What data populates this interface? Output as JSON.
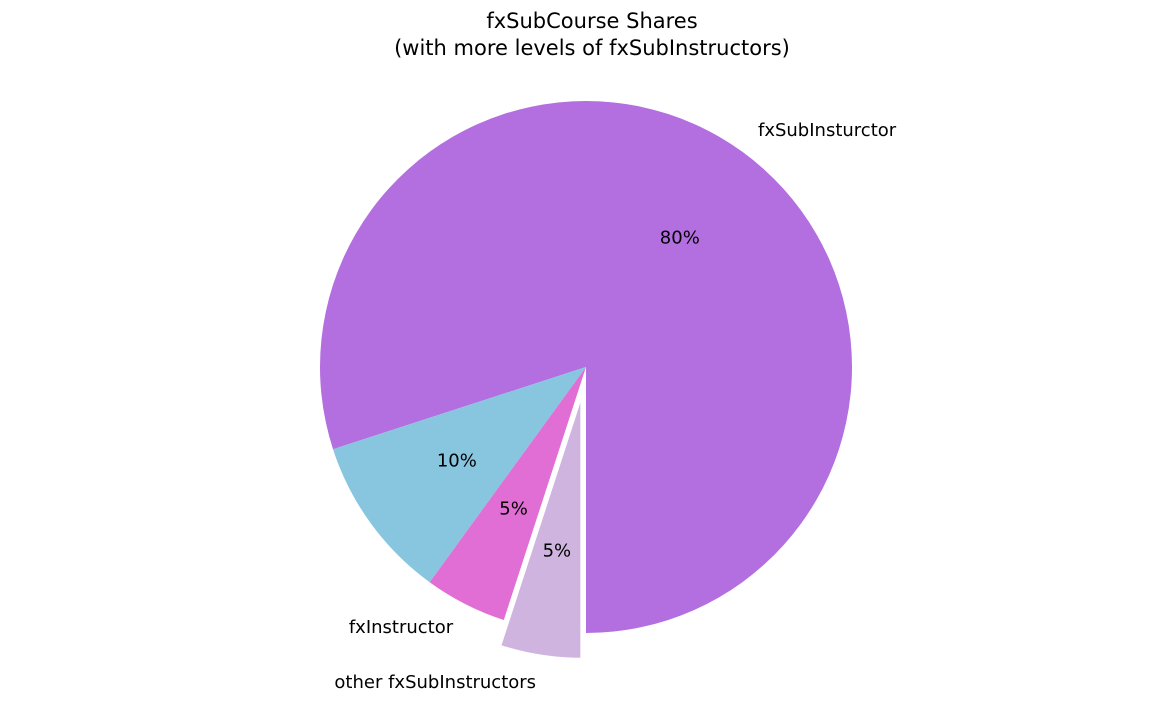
{
  "chart_data": {
    "type": "pie",
    "title_lines": [
      "fxSubCourse Shares",
      "(with more levels of fxSubInstructors)"
    ],
    "slices": [
      {
        "label": "fxSubInsturctor",
        "value": 80,
        "pct_label": "80%",
        "color": "#b36ee0",
        "exploded": false
      },
      {
        "label": "",
        "value": 10,
        "pct_label": "10%",
        "color": "#88c6e0",
        "exploded": false
      },
      {
        "label": "fxInstructor",
        "value": 5,
        "pct_label": "5%",
        "color": "#e06ed4",
        "exploded": false
      },
      {
        "label": "other fxSubInstructors",
        "value": 5,
        "pct_label": "5%",
        "color": "#cfb4e0",
        "exploded": true
      }
    ],
    "start_angle_deg": 270,
    "direction": "counterclockwise",
    "legend": "none"
  }
}
